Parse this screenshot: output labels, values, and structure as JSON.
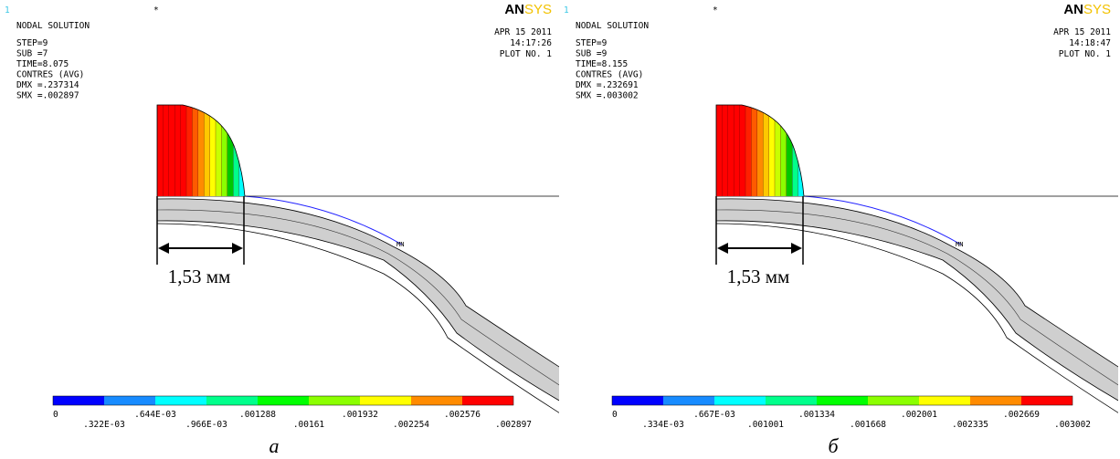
{
  "panels": [
    {
      "corner_number": "1",
      "star": "*",
      "title": "NODAL SOLUTION",
      "info": [
        "STEP=9",
        "SUB =7",
        "TIME=8.075",
        "CONTRES  (AVG)",
        "DMX =.237314",
        "SMX =.002897"
      ],
      "logo": {
        "an": "AN",
        "sys": "SYS"
      },
      "date": "APR 15 2011",
      "time": "14:17:26",
      "plot_no": "PLOT NO.   1",
      "mn_label": "MN",
      "legend_labels": [
        "0",
        ".322E-03",
        ".644E-03",
        ".966E-03",
        ".001288",
        ".00161",
        ".001932",
        ".002254",
        ".002576",
        ".002897"
      ],
      "dimension": "1,53 мм",
      "caption": "а"
    },
    {
      "corner_number": "1",
      "star": "*",
      "title": "NODAL SOLUTION",
      "info": [
        "STEP=9",
        "SUB =9",
        "TIME=8.155",
        "CONTRES  (AVG)",
        "DMX =.232691",
        "SMX =.003002"
      ],
      "logo": {
        "an": "AN",
        "sys": "SYS"
      },
      "date": "APR 15 2011",
      "time": "14:18:47",
      "plot_no": "PLOT NO.   1",
      "mn_label": "MN",
      "legend_labels": [
        "0",
        ".334E-03",
        ".667E-03",
        ".001001",
        ".001334",
        ".001668",
        ".002001",
        ".002335",
        ".002669",
        ".003002"
      ],
      "dimension": "1,53 мм",
      "caption": "б"
    }
  ]
}
